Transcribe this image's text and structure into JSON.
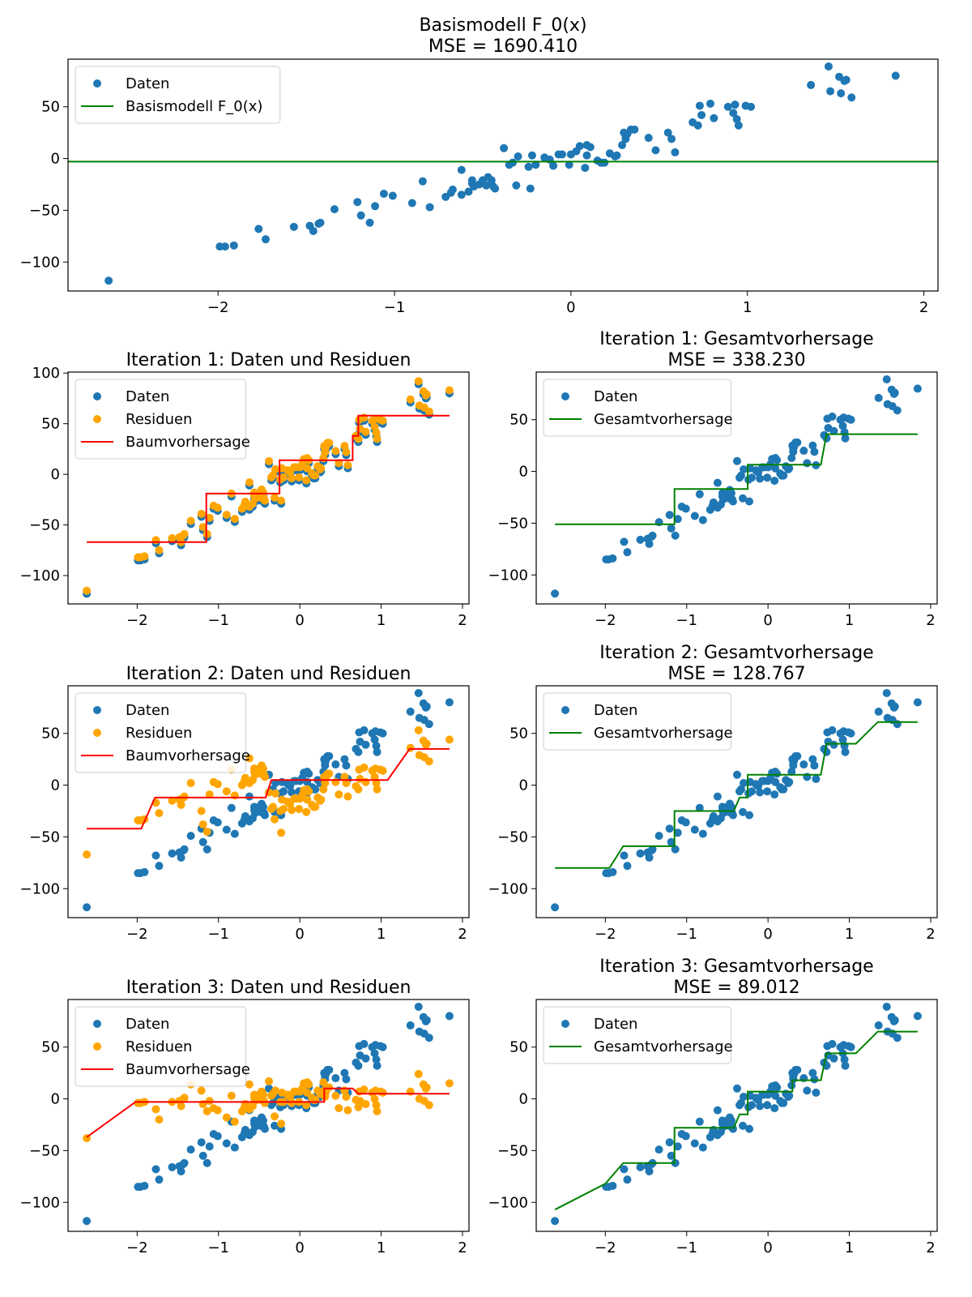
{
  "colors": {
    "data": "#1f77b4",
    "residual": "#ffa500",
    "tree": "#ff0000",
    "ensemble": "#008000"
  },
  "chart_data": [
    {
      "id": "base",
      "type": "scatter",
      "title": "Basismodell F_0(x)",
      "subtitle": "MSE = 1690.410",
      "xlabel": "",
      "ylabel": "",
      "xlim": [
        -2.85,
        2.08
      ],
      "ylim": [
        -128,
        96
      ],
      "xticks": [
        -2,
        -1,
        0,
        1,
        2
      ],
      "yticks": [
        -100,
        -50,
        0,
        50
      ],
      "legend": [
        "Daten",
        "Basismodell F_0(x)"
      ],
      "legend_position": "top-left",
      "line": {
        "name": "Basismodell F_0(x)",
        "color": "ensemble",
        "x": [
          -2.85,
          2.08
        ],
        "y": [
          -3.0,
          -3.0
        ]
      },
      "residuals": null
    },
    {
      "id": "it1-res",
      "type": "scatter",
      "title": "Iteration 1: Daten und Residuen",
      "subtitle": "",
      "xlabel": "",
      "ylabel": "",
      "xlim": [
        -2.85,
        2.08
      ],
      "ylim": [
        -128,
        101
      ],
      "xticks": [
        -2,
        -1,
        0,
        1,
        2
      ],
      "yticks": [
        -100,
        -50,
        0,
        50,
        100
      ],
      "legend": [
        "Daten",
        "Residuen",
        "Baumvorhersage"
      ],
      "legend_position": "top-left",
      "residual_offset": 3.0,
      "line": {
        "name": "Baumvorhersage",
        "color": "tree",
        "x": [
          -2.62,
          -1.15,
          -1.15,
          -0.25,
          -0.25,
          0.65,
          0.65,
          0.72,
          0.72,
          1.84
        ],
        "y": [
          -67,
          -67,
          -19,
          -19,
          14,
          14,
          38,
          38,
          58,
          58
        ]
      }
    },
    {
      "id": "it1-ens",
      "type": "scatter",
      "title": "Iteration 1: Gesamtvorhersage",
      "subtitle": "MSE = 338.230",
      "xlabel": "",
      "ylabel": "",
      "xlim": [
        -2.85,
        2.08
      ],
      "ylim": [
        -128,
        96
      ],
      "xticks": [
        -2,
        -1,
        0,
        1,
        2
      ],
      "yticks": [
        -100,
        -50,
        0,
        50
      ],
      "legend": [
        "Daten",
        "Gesamtvorhersage"
      ],
      "legend_position": "top-left",
      "line": {
        "name": "Gesamtvorhersage",
        "color": "ensemble",
        "x": [
          -2.62,
          -1.15,
          -1.15,
          -0.25,
          -0.25,
          0.65,
          0.72,
          0.72,
          1.84
        ],
        "y": [
          -51,
          -51,
          -17,
          -17,
          6.5,
          6.5,
          36,
          36,
          36
        ]
      }
    },
    {
      "id": "it2-res",
      "type": "scatter",
      "title": "Iteration 2: Daten und Residuen",
      "subtitle": "",
      "xlabel": "",
      "ylabel": "",
      "xlim": [
        -2.85,
        2.08
      ],
      "ylim": [
        -128,
        96
      ],
      "xticks": [
        -2,
        -1,
        0,
        1,
        2
      ],
      "yticks": [
        -100,
        -50,
        0,
        50
      ],
      "legend": [
        "Daten",
        "Residuen",
        "Baumvorhersage"
      ],
      "legend_position": "top-left",
      "line": {
        "name": "Baumvorhersage",
        "color": "tree",
        "x": [
          -2.62,
          -1.95,
          -1.78,
          -0.42,
          -0.35,
          1.08,
          1.35,
          1.84
        ],
        "y": [
          -42,
          -42,
          -12,
          -12,
          5,
          5,
          35,
          35
        ]
      }
    },
    {
      "id": "it2-ens",
      "type": "scatter",
      "title": "Iteration 2: Gesamtvorhersage",
      "subtitle": "MSE = 128.767",
      "xlabel": "",
      "ylabel": "",
      "xlim": [
        -2.85,
        2.08
      ],
      "ylim": [
        -128,
        96
      ],
      "xticks": [
        -2,
        -1,
        0,
        1,
        2
      ],
      "yticks": [
        -100,
        -50,
        0,
        50
      ],
      "legend": [
        "Daten",
        "Gesamtvorhersage"
      ],
      "legend_position": "top-left",
      "line": {
        "name": "Gesamtvorhersage",
        "color": "ensemble",
        "x": [
          -2.62,
          -1.95,
          -1.78,
          -1.15,
          -1.15,
          -0.42,
          -0.35,
          -0.25,
          -0.25,
          0.65,
          0.72,
          1.08,
          1.35,
          1.84
        ],
        "y": [
          -80,
          -80,
          -59,
          -59,
          -25,
          -25,
          -12,
          -12,
          10,
          10,
          40,
          40,
          61,
          61
        ]
      }
    },
    {
      "id": "it3-res",
      "type": "scatter",
      "title": "Iteration 3: Daten und Residuen",
      "subtitle": "",
      "xlabel": "",
      "ylabel": "",
      "xlim": [
        -2.85,
        2.08
      ],
      "ylim": [
        -128,
        96
      ],
      "xticks": [
        -2,
        -1,
        0,
        1,
        2
      ],
      "yticks": [
        -100,
        -50,
        0,
        50
      ],
      "legend": [
        "Daten",
        "Residuen",
        "Baumvorhersage"
      ],
      "legend_position": "top-left",
      "line": {
        "name": "Baumvorhersage",
        "color": "tree",
        "x": [
          -2.62,
          -2.02,
          0.3,
          0.3,
          0.65,
          0.72,
          1.84
        ],
        "y": [
          -37,
          -3,
          -3,
          10,
          10,
          5,
          5
        ]
      }
    },
    {
      "id": "it3-ens",
      "type": "scatter",
      "title": "Iteration 3: Gesamtvorhersage",
      "subtitle": "MSE = 89.012",
      "xlabel": "",
      "ylabel": "",
      "xlim": [
        -2.85,
        2.08
      ],
      "ylim": [
        -128,
        96
      ],
      "xticks": [
        -2,
        -1,
        0,
        1,
        2
      ],
      "yticks": [
        -100,
        -50,
        0,
        50
      ],
      "legend": [
        "Daten",
        "Gesamtvorhersage"
      ],
      "legend_position": "top-left",
      "line": {
        "name": "Gesamtvorhersage",
        "color": "ensemble",
        "x": [
          -2.62,
          -2.0,
          -1.78,
          -1.15,
          -1.15,
          -0.42,
          -0.35,
          -0.25,
          -0.25,
          0.3,
          0.3,
          0.65,
          0.72,
          1.08,
          1.35,
          1.84
        ],
        "y": [
          -107,
          -82,
          -62,
          -62,
          -28,
          -28,
          -15,
          -15,
          7,
          7,
          18,
          18,
          44,
          44,
          65,
          65
        ]
      }
    }
  ],
  "points": {
    "x": [
      -2.62,
      -1.99,
      -1.96,
      -1.91,
      -1.77,
      -1.73,
      -1.57,
      -1.48,
      -1.46,
      -1.43,
      -1.42,
      -1.34,
      -1.21,
      -1.19,
      -1.14,
      -1.11,
      -1.06,
      -1.01,
      -0.9,
      -0.84,
      -0.8,
      -0.71,
      -0.68,
      -0.67,
      -0.62,
      -0.62,
      -0.58,
      -0.56,
      -0.56,
      -0.55,
      -0.52,
      -0.5,
      -0.48,
      -0.47,
      -0.45,
      -0.44,
      -0.43,
      -0.38,
      -0.35,
      -0.33,
      -0.31,
      -0.3,
      -0.24,
      -0.23,
      -0.22,
      -0.2,
      -0.15,
      -0.12,
      -0.1,
      -0.07,
      -0.05,
      -0.01,
      0.0,
      0.03,
      0.05,
      0.08,
      0.09,
      0.09,
      0.11,
      0.15,
      0.17,
      0.19,
      0.22,
      0.25,
      0.26,
      0.29,
      0.3,
      0.31,
      0.31,
      0.32,
      0.34,
      0.36,
      0.44,
      0.48,
      0.55,
      0.57,
      0.59,
      0.69,
      0.72,
      0.73,
      0.74,
      0.79,
      0.81,
      0.89,
      0.92,
      0.93,
      0.94,
      0.95,
      0.99,
      1.02,
      1.36,
      1.46,
      1.47,
      1.52,
      1.53,
      1.55,
      1.56,
      1.59,
      1.84
    ],
    "y": [
      -118,
      -85,
      -85,
      -84,
      -68,
      -78,
      -66,
      -65,
      -70,
      -63,
      -62,
      -49,
      -42,
      -55,
      -62,
      -46,
      -34,
      -36,
      -43,
      -22,
      -47,
      -37,
      -33,
      -30,
      -35,
      -11,
      -32,
      -21,
      -24,
      -27,
      -25,
      -21,
      -26,
      -18,
      -21,
      -27,
      -29,
      10,
      -6,
      -4,
      -26,
      2,
      -8,
      -29,
      3,
      -6,
      1,
      -1,
      -7,
      4,
      4,
      -6,
      4,
      7,
      12,
      -9,
      13,
      3,
      11,
      -2,
      -4,
      -4,
      5,
      2,
      3,
      13,
      25,
      19,
      22,
      24,
      28,
      28,
      20,
      8,
      25,
      19,
      6,
      35,
      32,
      51,
      42,
      53,
      39,
      50,
      44,
      52,
      38,
      32,
      51,
      50,
      71,
      89,
      65,
      79,
      63,
      75,
      76,
      59,
      80
    ]
  },
  "resid1": {
    "x": [
      -2.62,
      -1.99,
      -1.96,
      -1.91,
      -1.77,
      -1.73,
      -1.57,
      -1.48,
      -1.46,
      -1.43,
      -1.42,
      -1.34,
      -1.21,
      -1.19,
      -1.14,
      -1.11,
      -1.06,
      -1.01,
      -0.9,
      -0.84,
      -0.8,
      -0.71,
      -0.68,
      -0.67,
      -0.62,
      -0.62,
      -0.58,
      -0.56,
      -0.56,
      -0.55,
      -0.52,
      -0.5,
      -0.48,
      -0.47,
      -0.45,
      -0.44,
      -0.43,
      -0.38,
      -0.35,
      -0.33,
      -0.31,
      -0.3,
      -0.24,
      -0.23,
      -0.22,
      -0.2,
      -0.15,
      -0.12,
      -0.1,
      -0.07,
      -0.05,
      -0.01,
      0.0,
      0.03,
      0.05,
      0.08,
      0.09,
      0.09,
      0.11,
      0.15,
      0.17,
      0.19,
      0.22,
      0.25,
      0.26,
      0.29,
      0.3,
      0.31,
      0.31,
      0.32,
      0.34,
      0.36,
      0.44,
      0.48,
      0.55,
      0.57,
      0.59,
      0.69,
      0.72,
      0.73,
      0.74,
      0.79,
      0.81,
      0.89,
      0.92,
      0.93,
      0.94,
      0.95,
      0.99,
      1.02,
      1.36,
      1.46,
      1.47,
      1.52,
      1.53,
      1.55,
      1.56,
      1.59,
      1.84
    ],
    "y": [
      -115,
      -82,
      -82,
      -81,
      -65,
      -75,
      -63,
      -62,
      -67,
      -60,
      -59,
      -46,
      -39,
      -52,
      -59,
      -43,
      -31,
      -33,
      -40,
      -19,
      -44,
      -34,
      -30,
      -27,
      -32,
      -8,
      -29,
      -18,
      -21,
      -24,
      -22,
      -18,
      -23,
      -15,
      -18,
      -24,
      -26,
      13,
      -3,
      -1,
      -23,
      5,
      -5,
      -26,
      6,
      -3,
      4,
      2,
      -4,
      7,
      7,
      -3,
      7,
      10,
      15,
      -6,
      16,
      6,
      14,
      1,
      -1,
      -1,
      8,
      5,
      6,
      16,
      28,
      22,
      25,
      27,
      31,
      31,
      23,
      11,
      28,
      22,
      9,
      38,
      35,
      54,
      45,
      56,
      42,
      53,
      47,
      55,
      41,
      35,
      54,
      53,
      74,
      92,
      68,
      82,
      66,
      78,
      79,
      62,
      83
    ]
  },
  "resid2": {
    "x": [
      -2.62,
      -1.99,
      -1.96,
      -1.91,
      -1.77,
      -1.73,
      -1.57,
      -1.48,
      -1.46,
      -1.43,
      -1.42,
      -1.34,
      -1.21,
      -1.19,
      -1.14,
      -1.11,
      -1.06,
      -1.01,
      -0.9,
      -0.84,
      -0.8,
      -0.71,
      -0.68,
      -0.67,
      -0.62,
      -0.62,
      -0.58,
      -0.56,
      -0.56,
      -0.55,
      -0.52,
      -0.5,
      -0.48,
      -0.47,
      -0.45,
      -0.44,
      -0.43,
      -0.38,
      -0.35,
      -0.33,
      -0.31,
      -0.3,
      -0.24,
      -0.23,
      -0.22,
      -0.2,
      -0.15,
      -0.12,
      -0.1,
      -0.07,
      -0.05,
      -0.01,
      0.0,
      0.03,
      0.05,
      0.08,
      0.09,
      0.09,
      0.11,
      0.15,
      0.17,
      0.19,
      0.22,
      0.25,
      0.26,
      0.29,
      0.3,
      0.31,
      0.31,
      0.32,
      0.34,
      0.36,
      0.44,
      0.48,
      0.55,
      0.57,
      0.59,
      0.69,
      0.72,
      0.73,
      0.74,
      0.79,
      0.81,
      0.89,
      0.92,
      0.93,
      0.94,
      0.95,
      0.99,
      1.02,
      1.36,
      1.46,
      1.47,
      1.52,
      1.53,
      1.55,
      1.56,
      1.59,
      1.84
    ],
    "y": [
      -67,
      -34,
      -34,
      -33,
      -17,
      -27,
      -15,
      -14,
      -19,
      -12,
      -11,
      2,
      -25,
      -38,
      -45,
      -9,
      3,
      1,
      -6,
      15,
      -10,
      0,
      4,
      7,
      2,
      26,
      5,
      16,
      13,
      10,
      12,
      16,
      11,
      19,
      16,
      10,
      8,
      -7,
      -23,
      -21,
      -33,
      -8,
      -25,
      -46,
      -14,
      -23,
      -16,
      -18,
      -24,
      -13,
      -13,
      -23,
      -13,
      -10,
      -5,
      -26,
      -4,
      -14,
      -6,
      -19,
      -21,
      -21,
      -12,
      -15,
      -14,
      -4,
      8,
      2,
      5,
      7,
      11,
      11,
      3,
      -9,
      8,
      2,
      -11,
      -1,
      -4,
      15,
      6,
      17,
      3,
      14,
      8,
      16,
      2,
      -4,
      15,
      14,
      36,
      53,
      29,
      43,
      27,
      39,
      40,
      23,
      44
    ]
  },
  "resid3": {
    "x": [
      -2.62,
      -1.99,
      -1.96,
      -1.91,
      -1.77,
      -1.73,
      -1.57,
      -1.48,
      -1.46,
      -1.43,
      -1.42,
      -1.34,
      -1.21,
      -1.19,
      -1.14,
      -1.11,
      -1.06,
      -1.01,
      -0.9,
      -0.84,
      -0.8,
      -0.71,
      -0.68,
      -0.67,
      -0.62,
      -0.62,
      -0.58,
      -0.56,
      -0.56,
      -0.55,
      -0.52,
      -0.5,
      -0.48,
      -0.47,
      -0.45,
      -0.44,
      -0.43,
      -0.38,
      -0.35,
      -0.33,
      -0.31,
      -0.3,
      -0.24,
      -0.23,
      -0.22,
      -0.2,
      -0.15,
      -0.12,
      -0.1,
      -0.07,
      -0.05,
      -0.01,
      0.0,
      0.03,
      0.05,
      0.08,
      0.09,
      0.09,
      0.11,
      0.15,
      0.17,
      0.19,
      0.22,
      0.25,
      0.26,
      0.29,
      0.3,
      0.31,
      0.31,
      0.32,
      0.34,
      0.36,
      0.44,
      0.48,
      0.55,
      0.57,
      0.59,
      0.69,
      0.72,
      0.73,
      0.74,
      0.79,
      0.81,
      0.89,
      0.92,
      0.93,
      0.94,
      0.95,
      0.99,
      1.02,
      1.36,
      1.46,
      1.47,
      1.52,
      1.53,
      1.55,
      1.56,
      1.59,
      1.84
    ],
    "y": [
      -38,
      -4,
      -4,
      -3,
      -10,
      -20,
      -3,
      -2,
      -7,
      0,
      1,
      14,
      8,
      -5,
      -12,
      -2,
      -9,
      -11,
      -18,
      3,
      -22,
      -12,
      -8,
      -5,
      -10,
      14,
      -7,
      4,
      1,
      -2,
      0,
      4,
      -1,
      7,
      4,
      -2,
      -4,
      17,
      3,
      5,
      -17,
      8,
      -3,
      -24,
      6,
      -3,
      4,
      2,
      -4,
      7,
      7,
      -3,
      7,
      10,
      15,
      -6,
      16,
      6,
      14,
      1,
      -1,
      -1,
      8,
      5,
      6,
      16,
      8,
      2,
      5,
      7,
      11,
      11,
      3,
      -9,
      8,
      2,
      -11,
      -1,
      -8,
      7,
      -2,
      9,
      -5,
      6,
      0,
      8,
      -6,
      -12,
      7,
      6,
      7,
      24,
      0,
      14,
      -2,
      10,
      11,
      -6,
      15
    ]
  }
}
